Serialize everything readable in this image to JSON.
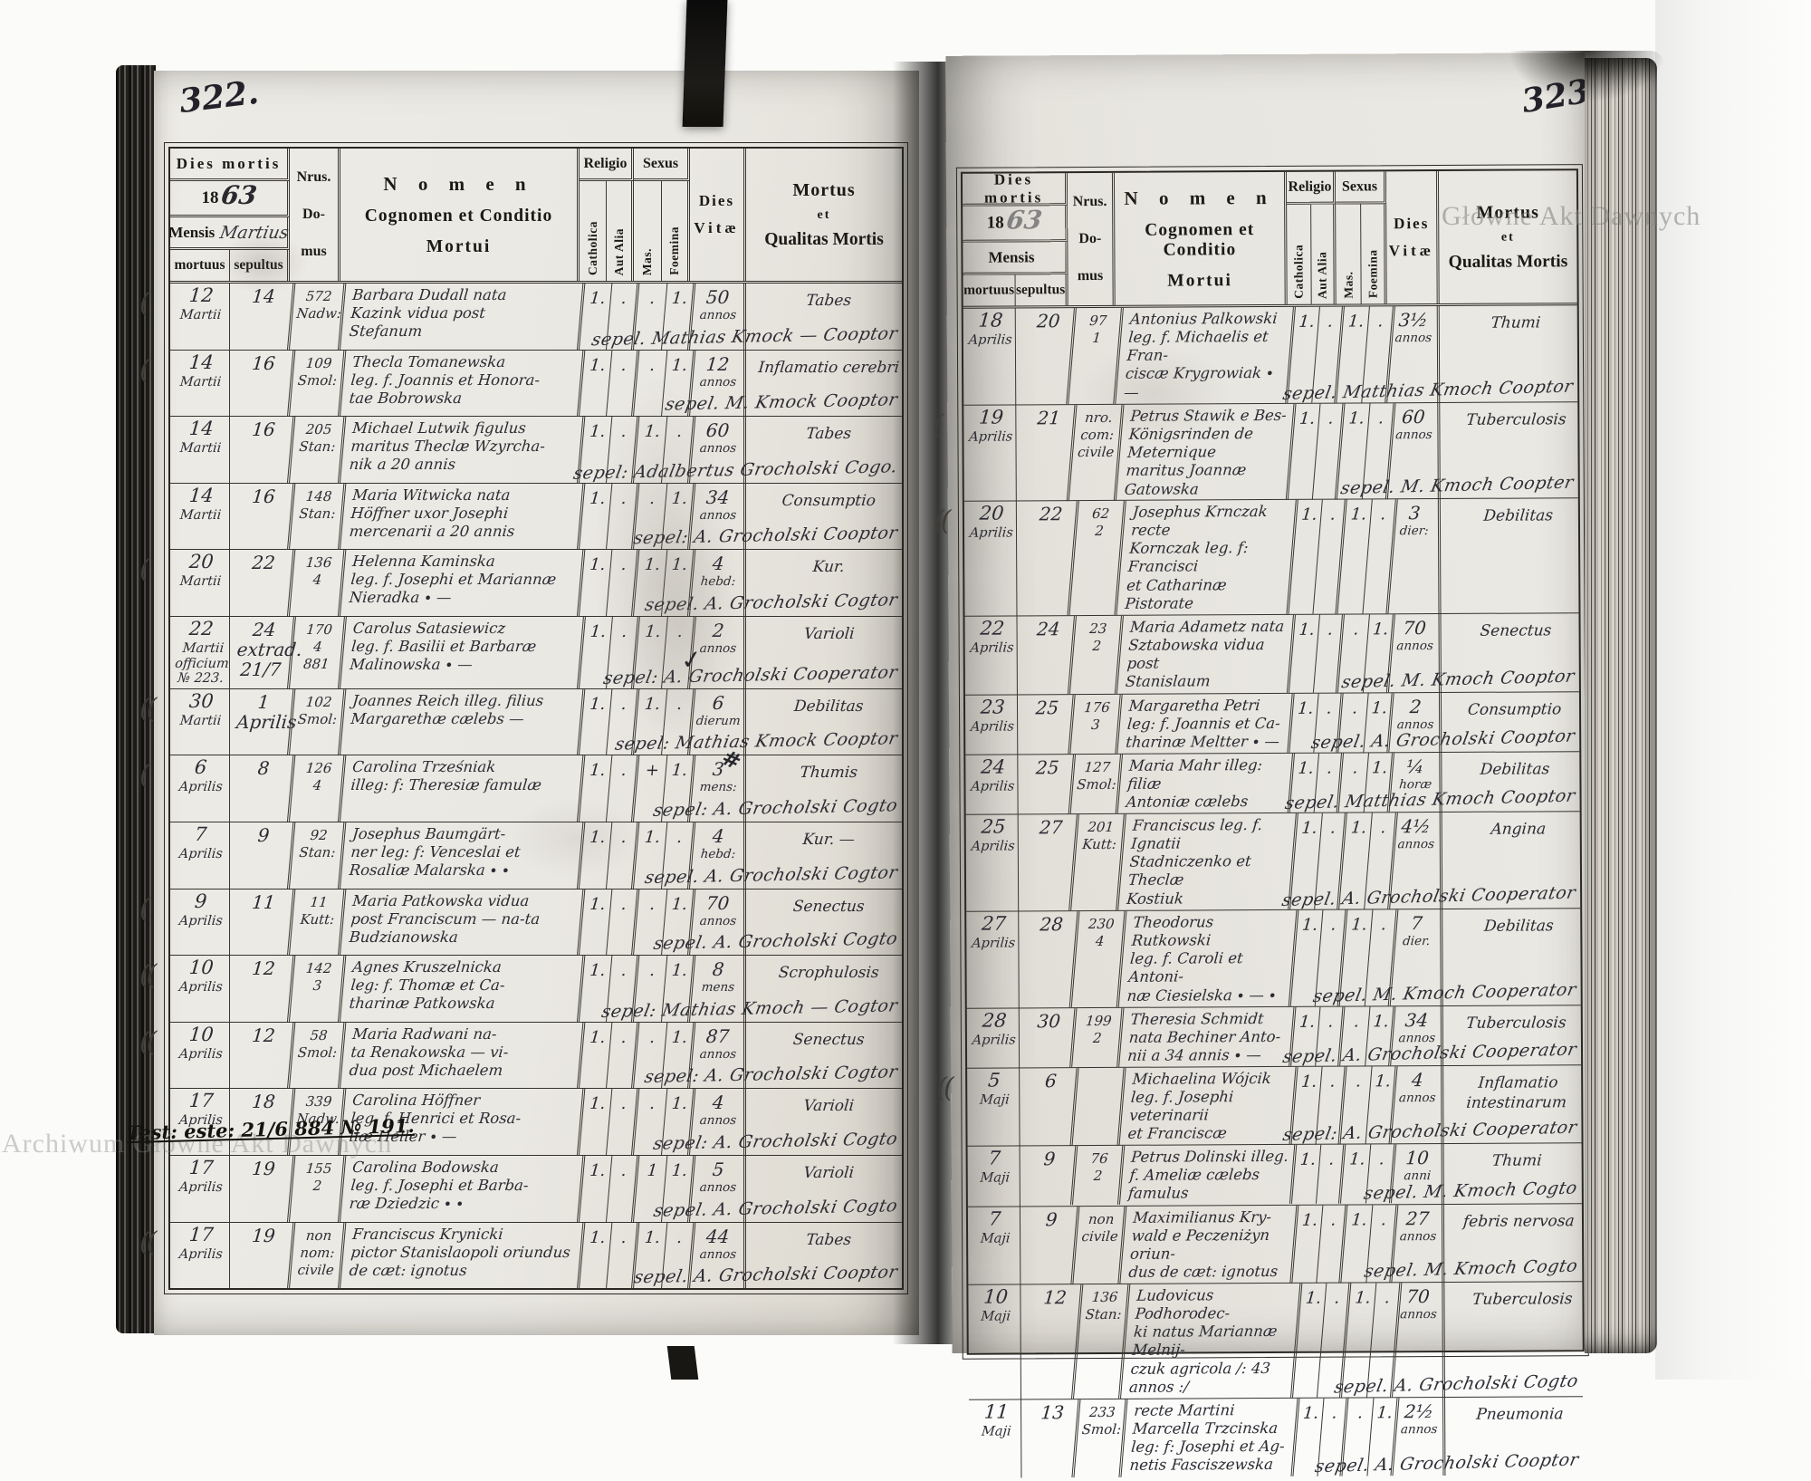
{
  "watermarks": {
    "left": "Archiwum Główne Akt Dawnych",
    "right": "Główne Akt Dawnych"
  },
  "marks": {
    "check": "✓",
    "hash": "#"
  },
  "header": {
    "dies_mortis": "Dies mortis",
    "year_prefix": "18",
    "mensis": "Mensis",
    "mortuus": "mortuus",
    "sepultus": "sepultus",
    "nrus1": "Nrus.",
    "nrus2": "Do-",
    "nrus3": "mus",
    "nomen1": "N o m e n",
    "nomen2": "Cognomen et Conditio",
    "nomen3": "Mortui",
    "religio": "Religio",
    "catholica": "Catholica",
    "aut_alia": "Aut Alia",
    "sexus": "Sexus",
    "mas": "Mas.",
    "foemina": "Foemina",
    "dies1": "Dies",
    "dies2": "Vitæ",
    "mortus1": "Mortus",
    "mortus2": "et",
    "mortus3": "Qualitas Mortis"
  },
  "pages": [
    {
      "page_number": "322.",
      "year_hand": "63",
      "mensis_hand": "Martius",
      "rows": [
        {
          "margin": "(",
          "dd": "12",
          "dm": "Martii",
          "bd": "14",
          "house": "572\nNadw:",
          "name": "Barbara Dudall nata\nKazink vidua post\nStefanum",
          "sepel": "sepel. Mathias Kmock — Cooptor",
          "cath": "1.",
          "alia": ".",
          "mas": ".",
          "foem": "1.",
          "age": "50",
          "unit": "annos",
          "cause": "Tabes",
          "note": ""
        },
        {
          "margin": "(",
          "dd": "14",
          "dm": "Martii",
          "bd": "16",
          "house": "109\nSmol:",
          "name": "Thecla Tomanewska\nleg. f. Joannis et Honora-\ntae Bobrowska",
          "sepel": "sepel. M. Kmock Cooptor",
          "cath": "1.",
          "alia": ".",
          "mas": ".",
          "foem": "1.",
          "age": "12",
          "unit": "annos",
          "cause": "Inflamatio cerebri",
          "note": ""
        },
        {
          "margin": "",
          "dd": "14",
          "dm": "Martii",
          "bd": "16",
          "house": "205\nStan:",
          "name": "Michael Lutwik figulus\nmaritus Theclæ Wzyrcha-\nnik a 20 annis",
          "sepel": "sepel: Adalbertus Grocholski Cogo.",
          "cath": "1.",
          "alia": ".",
          "mas": "1.",
          "foem": ".",
          "age": "60",
          "unit": "annos",
          "cause": "Tabes",
          "note": ""
        },
        {
          "margin": "",
          "dd": "14",
          "dm": "Martii",
          "bd": "16",
          "house": "148\nStan:",
          "name": "Maria Witwicka nata\nHöffner uxor Josephi\nmercenarii a 20 annis",
          "sepel": "sepel: A. Grocholski Cooptor",
          "cath": "1.",
          "alia": ".",
          "mas": ".",
          "foem": "1.",
          "age": "34",
          "unit": "annos",
          "cause": "Consumptio",
          "note": ""
        },
        {
          "margin": "(",
          "dd": "20",
          "dm": "Martii",
          "bd": "22",
          "house": "136\n4",
          "name": "Helenna Kaminska\nleg. f. Josephi et Mariannæ\nNieradka ∙ —",
          "sepel": "sepel. A. Grocholski Cogtor",
          "cath": "1.",
          "alia": ".",
          "mas": "1.",
          "foem": "1.",
          "age": "4",
          "unit": "hebd:",
          "cause": "Kur.",
          "note": ""
        },
        {
          "margin": "",
          "dd": "22",
          "dm": "Martii\nofficium\n№ 223.",
          "bd": "24\nextrad. 21/7",
          "house": "170\n4\n881",
          "name": "Carolus Satasiewicz\nleg. f. Basilii et Barbaræ\nMalinowska ∙ —",
          "sepel": "sepel: A. Grocholski Cooperator",
          "cath": "1.",
          "alia": ".",
          "mas": "1.",
          "foem": ".",
          "age": "2",
          "unit": "annos",
          "cause": "Varioli",
          "note": ""
        },
        {
          "margin": "((",
          "dd": "30",
          "dm": "Martii",
          "bd": "1\nAprilis",
          "house": "102\nSmol:",
          "name": "Joannes Reich illeg. filius\nMargarethæ cælebs —",
          "sepel": "sepel: Mathias Kmock Cooptor",
          "cath": "1.",
          "alia": ".",
          "mas": "1.",
          "foem": ".",
          "age": "6",
          "unit": "dierum",
          "cause": "Debilitas",
          "note": ""
        },
        {
          "margin": "(",
          "dd": "6",
          "dm": "Aprilis",
          "bd": "8",
          "house": "126\n4",
          "name": "Carolina Trześniak\nilleg: f: Theresiæ famulæ",
          "sepel": "sepel: A. Grocholski Cogto",
          "cath": "1.",
          "alia": ".",
          "mas": "+",
          "foem": "1.",
          "age": "3",
          "unit": "mens:",
          "cause": "Thumis",
          "note": ""
        },
        {
          "margin": "",
          "dd": "7",
          "dm": "Aprilis",
          "bd": "9",
          "house": "92\nStan:",
          "name": "Josephus Baumgärt-\nner leg: f: Venceslai et\nRosaliæ Malarska ∙ ∙",
          "sepel": "sepel. A. Grocholski Cogtor",
          "cath": "1.",
          "alia": ".",
          "mas": "1.",
          "foem": ".",
          "age": "4",
          "unit": "hebd:",
          "cause": "Kur. —",
          "note": ""
        },
        {
          "margin": "(",
          "dd": "9",
          "dm": "Aprilis",
          "bd": "11",
          "house": "11\nKutt:",
          "name": "Maria Patkowska vidua\npost Franciscum — na-ta\nBudzianowska",
          "sepel": "sepel. A. Grocholski Cogto",
          "cath": "1.",
          "alia": ".",
          "mas": ".",
          "foem": "1.",
          "age": "70",
          "unit": "annos",
          "cause": "Senectus",
          "note": ""
        },
        {
          "margin": "((",
          "dd": "10",
          "dm": "Aprilis",
          "bd": "12",
          "house": "142\n3",
          "name": "Agnes Kruszelnicka\nleg: f. Thomæ et Ca-\ntharinæ Patkowska",
          "sepel": "sepel: Mathias Kmoch — Cogtor",
          "cath": "1.",
          "alia": ".",
          "mas": ".",
          "foem": "1.",
          "age": "8",
          "unit": "mens",
          "cause": "Scrophulosis",
          "note": ""
        },
        {
          "margin": "((",
          "dd": "10",
          "dm": "Aprilis",
          "bd": "12",
          "house": "58\nSmol:",
          "name": "Maria Radwani na-\nta Renakowska — vi-\ndua post Michaelem",
          "sepel": "sepel: A. Grocholski Cogtor",
          "cath": "1.",
          "alia": ".",
          "mas": ".",
          "foem": "1.",
          "age": "87",
          "unit": "annos",
          "cause": "Senectus",
          "note": ""
        },
        {
          "margin": "",
          "dd": "17",
          "dm": "Aprilis",
          "bd": "18",
          "house": "339\nNadw.",
          "name": "Carolina Höffner\nleg. f. Henrici et Rosa-\nliæ Heller ∙ —",
          "sepel": "sepel: A. Grocholski Cogto",
          "cath": "1.",
          "alia": ".",
          "mas": ".",
          "foem": "1.",
          "age": "4",
          "unit": "annos",
          "cause": "Varioli",
          "note": "Test: este: 21/6 884 № 191."
        },
        {
          "margin": "",
          "dd": "17",
          "dm": "Aprilis",
          "bd": "19",
          "house": "155\n2",
          "name": "Carolina Bodowska\nleg. f. Josephi et Barba-\nræ Dziedzic ∙ ∙",
          "sepel": "sepel. A. Grocholski Cogto",
          "cath": "1.",
          "alia": ".",
          "mas": "1",
          "foem": "1.",
          "age": "5",
          "unit": "annos",
          "cause": "Varioli",
          "note": ""
        },
        {
          "margin": "((",
          "dd": "17",
          "dm": "Aprilis",
          "bd": "19",
          "house": "non\nnom:\ncivile",
          "name": "Franciscus Krynicki\npictor Stanislaopoli oriundus\nde cæt: ignotus",
          "sepel": "sepel. A. Grocholski Cooptor",
          "cath": "1.",
          "alia": ".",
          "mas": "1.",
          "foem": ".",
          "age": "44",
          "unit": "annos",
          "cause": "Tabes",
          "note": ""
        }
      ]
    },
    {
      "page_number": "323.",
      "year_hand": "63",
      "mensis_hand": "",
      "rows": [
        {
          "margin": "",
          "dd": "18",
          "dm": "Aprilis",
          "bd": "20",
          "house": "97\n1",
          "name": "Antonius Palkowski\nleg. f. Michaelis et Fran-\nciscæ Krygrowiak ∙ —",
          "sepel": "sepel. Matthias Kmoch Cooptor",
          "cath": "1.",
          "alia": ".",
          "mas": "1.",
          "foem": ".",
          "age": "3½",
          "unit": "annos",
          "cause": "Thumi",
          "note": ""
        },
        {
          "margin": "(",
          "dd": "19",
          "dm": "Aprilis",
          "bd": "21",
          "house": "nro.\ncom:\ncivile",
          "name": "Petrus Stawik e Bes-\nKönigsrinden de Meternique\nmaritus Joannæ Gatowska",
          "sepel": "sepel. M. Kmoch Coopter",
          "cath": "1.",
          "alia": ".",
          "mas": "1.",
          "foem": ".",
          "age": "60",
          "unit": "annos",
          "cause": "Tuberculosis",
          "note": ""
        },
        {
          "margin": "((",
          "dd": "20",
          "dm": "Aprilis",
          "bd": "22",
          "house": "62\n2",
          "name": "Josephus Krnczak recte\nKornczak leg. f: Francisci\net Catharinæ Pistorate",
          "sepel": "",
          "cath": "1.",
          "alia": ".",
          "mas": "1.",
          "foem": ".",
          "age": "3",
          "unit": "dier:",
          "cause": "Debilitas",
          "note": ""
        },
        {
          "margin": "",
          "dd": "22",
          "dm": "Aprilis",
          "bd": "24",
          "house": "23\n2",
          "name": "Maria Adametz nata\nSztabowska vidua post\nStanislaum",
          "sepel": "sepel. M. Kmoch Cooptor",
          "cath": "1.",
          "alia": ".",
          "mas": ".",
          "foem": "1.",
          "age": "70",
          "unit": "annos",
          "cause": "Senectus",
          "note": ""
        },
        {
          "margin": "",
          "dd": "23",
          "dm": "Aprilis",
          "bd": "25",
          "house": "176\n3",
          "name": "Margaretha Petri\nleg: f. Joannis et Ca-\ntharinæ Meltter ∙ —",
          "sepel": "sepel. A. Grocholski Cooptor",
          "cath": "1.",
          "alia": ".",
          "mas": ".",
          "foem": "1.",
          "age": "2",
          "unit": "annos",
          "cause": "Consumptio",
          "note": ""
        },
        {
          "margin": "",
          "dd": "24",
          "dm": "Aprilis",
          "bd": "25",
          "house": "127\nSmol:",
          "name": "Maria Mahr illeg: filiæ\nAntoniæ cælebs",
          "sepel": "sepel. Matthias Kmoch Cooptor",
          "cath": "1.",
          "alia": ".",
          "mas": ".",
          "foem": "1.",
          "age": "¼",
          "unit": "horæ",
          "cause": "Debilitas",
          "note": ""
        },
        {
          "margin": "",
          "dd": "25",
          "dm": "Aprilis",
          "bd": "27",
          "house": "201\nKutt:",
          "name": "Franciscus leg. f. Ignatii\nStadniczenko et Theclæ\nKostiuk",
          "sepel": "sepel. A. Grocholski Cooperator",
          "cath": "1.",
          "alia": ".",
          "mas": "1.",
          "foem": ".",
          "age": "4½",
          "unit": "annos",
          "cause": "Angina",
          "note": ""
        },
        {
          "margin": "",
          "dd": "27",
          "dm": "Aprilis",
          "bd": "28",
          "house": "230\n4",
          "name": "Theodorus Rutkowski\nleg. f. Caroli et Antoni-\nnæ Ciesielska ∙ — ∙",
          "sepel": "sepel. M. Kmoch Cooperator",
          "cath": "1.",
          "alia": ".",
          "mas": "1.",
          "foem": ".",
          "age": "7",
          "unit": "dier.",
          "cause": "Debilitas",
          "note": ""
        },
        {
          "margin": "",
          "dd": "28",
          "dm": "Aprilis",
          "bd": "30",
          "house": "199\n2",
          "name": "Theresia Schmidt\nnata Bechiner Anto-\nnii a 34 annis ∙ —",
          "sepel": "sepel. A. Grocholski Cooperator",
          "cath": "1.",
          "alia": ".",
          "mas": ".",
          "foem": "1.",
          "age": "34",
          "unit": "annos",
          "cause": "Tuberculosis",
          "note": ""
        },
        {
          "margin": "((",
          "dd": "5",
          "dm": "Maji",
          "bd": "6",
          "house": "",
          "name": "Michaelina Wójcik\nleg. f. Josephi veterinarii\net Franciscæ",
          "sepel": "sepel: A. Grocholski Cooperator",
          "cath": "1.",
          "alia": ".",
          "mas": ".",
          "foem": "1.",
          "age": "4",
          "unit": "annos",
          "cause": "Inflamatio\nintestinarum",
          "note": ""
        },
        {
          "margin": "",
          "dd": "7",
          "dm": "Maji",
          "bd": "9",
          "house": "76\n2",
          "name": "Petrus Dolinski illeg.\nf. Ameliæ cælebs famulus",
          "sepel": "sepel. M. Kmoch Cogto",
          "cath": "1.",
          "alia": ".",
          "mas": "1.",
          "foem": ".",
          "age": "10",
          "unit": "anni",
          "cause": "Thumi",
          "note": ""
        },
        {
          "margin": "",
          "dd": "7",
          "dm": "Maji",
          "bd": "9",
          "house": "non\ncivile",
          "name": "Maximilianus Kry-\nwald e Peczeniżyn oriun-\ndus de cæt: ignotus",
          "sepel": "sepel. M. Kmoch Cogto",
          "cath": "1.",
          "alia": ".",
          "mas": "1.",
          "foem": ".",
          "age": "27",
          "unit": "annos",
          "cause": "febris nervosa",
          "note": ""
        },
        {
          "margin": "",
          "dd": "10",
          "dm": "Maji",
          "bd": "12",
          "house": "136\nStan:",
          "name": "Ludovicus Podhorodec-\nki natus Mariannæ Melnij-\nczuk agricola /: 43 annos :/",
          "sepel": "sepel. A. Grocholski Cogto",
          "cath": "1.",
          "alia": ".",
          "mas": "1.",
          "foem": ".",
          "age": "70",
          "unit": "annos",
          "cause": "Tuberculosis",
          "note": ""
        },
        {
          "margin": "",
          "dd": "11",
          "dm": "Maji",
          "bd": "13",
          "house": "233\nSmol:",
          "name": "recte Martini\nMarcella Trzcinska\nleg: f: Josephi et Ag-\nnetis Fasciszewska",
          "sepel": "sepel. A. Grocholski Cooptor",
          "cath": "1.",
          "alia": ".",
          "mas": ".",
          "foem": "1.",
          "age": "2½",
          "unit": "annos",
          "cause": "Pneumonia",
          "note": ""
        }
      ]
    }
  ]
}
